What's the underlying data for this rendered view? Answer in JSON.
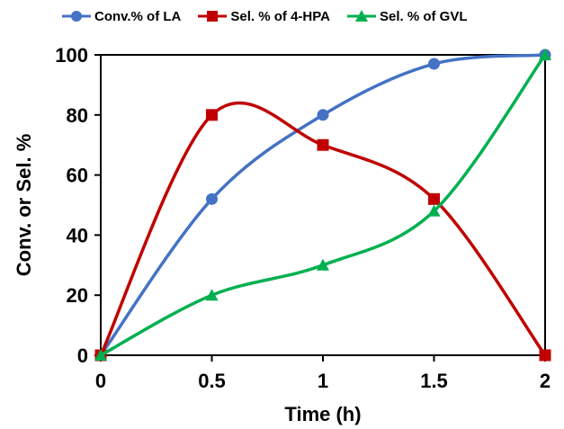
{
  "chart_data": {
    "type": "line",
    "title": "",
    "xlabel": "Time (h)",
    "ylabel": "Conv. or Sel. %",
    "x": [
      0,
      0.5,
      1,
      1.5,
      2
    ],
    "x_tick_labels": [
      "0",
      "0.5",
      "1",
      "1.5",
      "2"
    ],
    "y_tick_labels": [
      "0",
      "20",
      "40",
      "60",
      "80",
      "100"
    ],
    "xlim": [
      0,
      2
    ],
    "ylim": [
      0,
      100
    ],
    "grid": false,
    "legend_position": "top",
    "smooth": true,
    "series": [
      {
        "name": "Conv.% of LA",
        "values": [
          0,
          52,
          80,
          97,
          100
        ],
        "color": "#4472C4",
        "marker": "circle"
      },
      {
        "name": "Sel. % of 4-HPA",
        "values": [
          0,
          80,
          70,
          52,
          0
        ],
        "color": "#C00000",
        "marker": "square"
      },
      {
        "name": "Sel. % of GVL",
        "values": [
          0,
          20,
          30,
          48,
          100
        ],
        "color": "#00B050",
        "marker": "triangle"
      }
    ]
  }
}
